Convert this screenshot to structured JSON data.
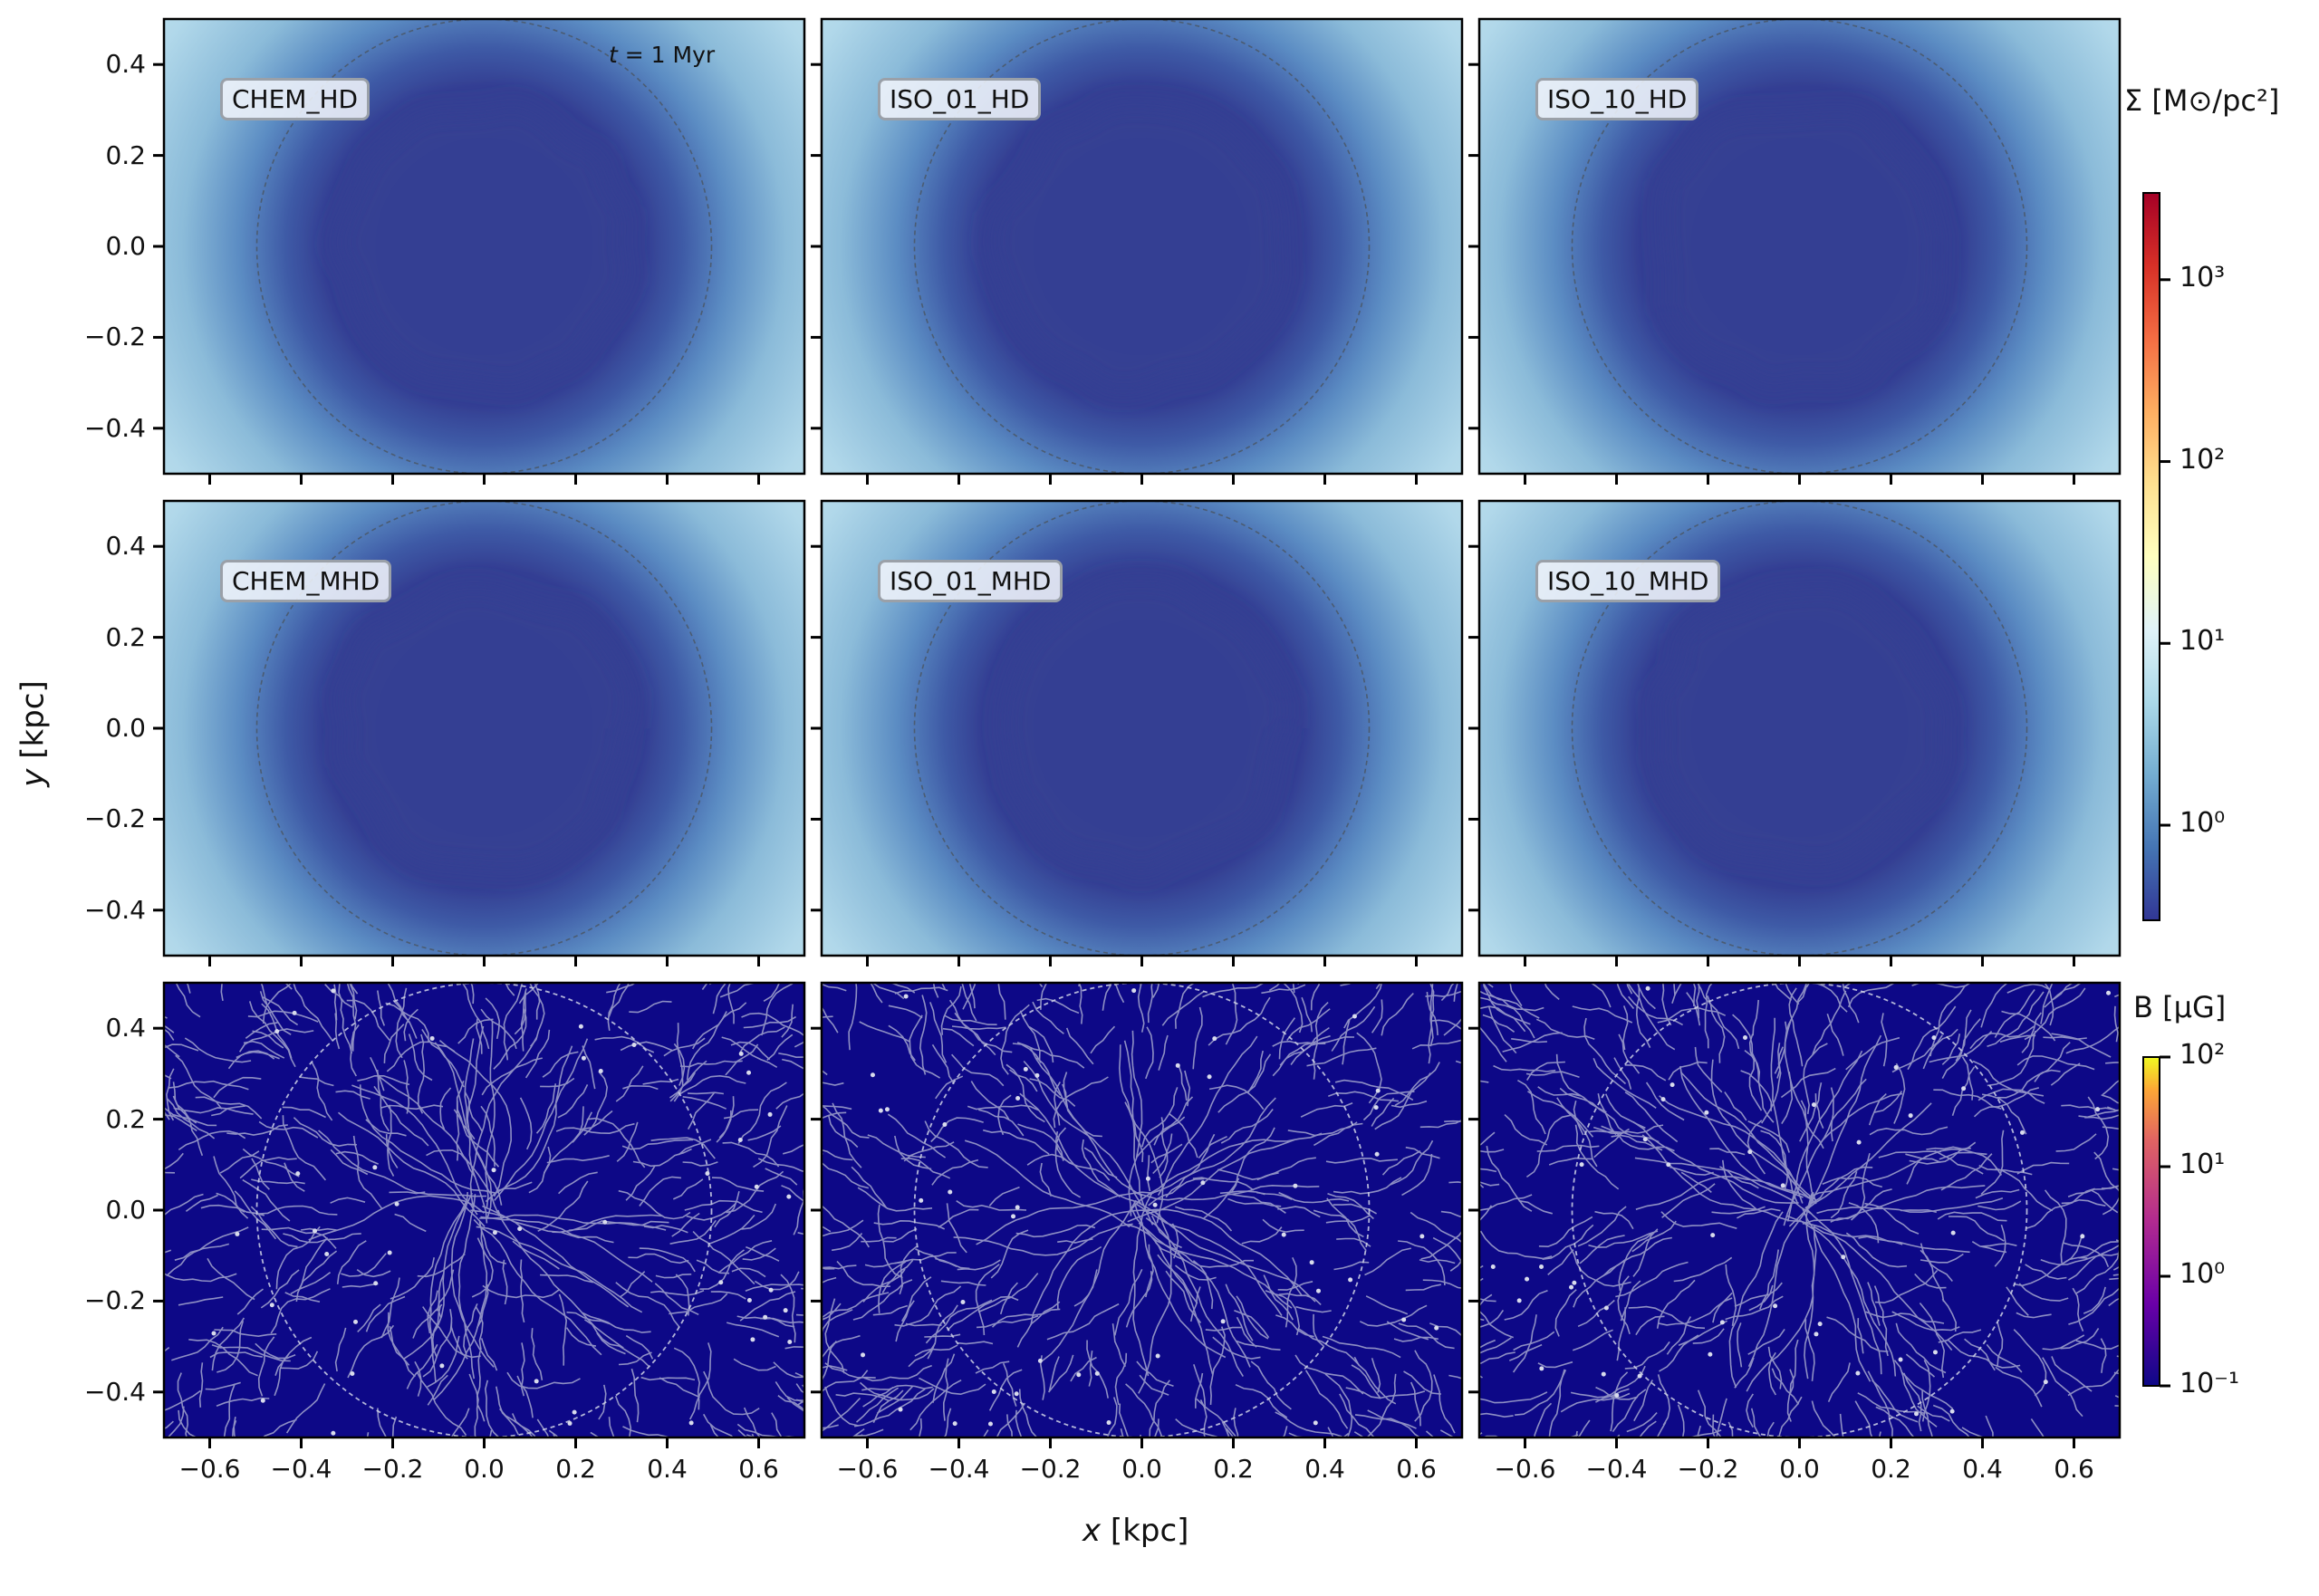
{
  "time_annotation": "t = 1 Myr",
  "xlabel": "x [kpc]",
  "ylabel": "y [kpc]",
  "colorbar_sigma": {
    "label": "Σ [M⊙/pc²]",
    "scale": "log",
    "range": [
      0.3,
      3000
    ],
    "ticks": [
      {
        "value": 1,
        "label": "10⁰"
      },
      {
        "value": 10,
        "label": "10¹"
      },
      {
        "value": 100,
        "label": "10²"
      },
      {
        "value": 1000,
        "label": "10³"
      }
    ],
    "colormap": "RdYlBu_r"
  },
  "colorbar_b": {
    "label": "B [μG]",
    "scale": "log",
    "range": [
      0.1,
      100
    ],
    "ticks": [
      {
        "value": 0.1,
        "label": "10⁻¹"
      },
      {
        "value": 1,
        "label": "10⁰"
      },
      {
        "value": 10,
        "label": "10¹"
      },
      {
        "value": 100,
        "label": "10²"
      }
    ],
    "colormap": "plasma"
  },
  "chart_data": {
    "type": "heatmap",
    "layout": {
      "rows": 3,
      "cols": 3
    },
    "xlim": [
      -0.7,
      0.7
    ],
    "ylim": [
      -0.5,
      0.5
    ],
    "xticks": [
      -0.6,
      -0.4,
      -0.2,
      0.0,
      0.2,
      0.4,
      0.6
    ],
    "xtick_labels": [
      "−0.6",
      "−0.4",
      "−0.2",
      "0.0",
      "0.2",
      "0.4",
      "0.6"
    ],
    "yticks": [
      0.4,
      0.2,
      0.0,
      -0.2,
      -0.4
    ],
    "ytick_labels": [
      "0.4",
      "0.2",
      "0.0",
      "−0.2",
      "−0.4"
    ],
    "reference_circle_radius_kpc": 0.5,
    "panels": [
      {
        "row": 0,
        "col": 0,
        "label": "CHEM_HD",
        "quantity": "surface density"
      },
      {
        "row": 0,
        "col": 1,
        "label": "ISO_01_HD",
        "quantity": "surface density"
      },
      {
        "row": 0,
        "col": 2,
        "label": "ISO_10_HD",
        "quantity": "surface density"
      },
      {
        "row": 1,
        "col": 0,
        "label": "CHEM_MHD",
        "quantity": "surface density"
      },
      {
        "row": 1,
        "col": 1,
        "label": "ISO_01_MHD",
        "quantity": "surface density"
      },
      {
        "row": 1,
        "col": 2,
        "label": "ISO_10_MHD",
        "quantity": "surface density"
      },
      {
        "row": 2,
        "col": 0,
        "label": "",
        "quantity": "magnetic field"
      },
      {
        "row": 2,
        "col": 1,
        "label": "",
        "quantity": "magnetic field"
      },
      {
        "row": 2,
        "col": 2,
        "label": "",
        "quantity": "magnetic field"
      }
    ],
    "colors": {
      "cavity": "#343f93",
      "ambient": "#c2e3ef",
      "shell": "#5b8cc3",
      "bfield_bg": "#0d0887",
      "streamline": "#b9bdd9"
    }
  }
}
